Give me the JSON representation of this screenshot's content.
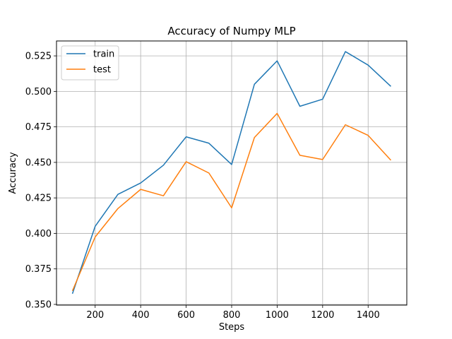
{
  "chart_data": {
    "type": "line",
    "title": "Accuracy of Numpy MLP",
    "xlabel": "Steps",
    "ylabel": "Accuracy",
    "x": [
      100,
      200,
      300,
      400,
      500,
      600,
      700,
      800,
      900,
      1000,
      1100,
      1200,
      1300,
      1400,
      1500
    ],
    "series": [
      {
        "name": "train",
        "color": "#1f77b4",
        "values": [
          0.3575,
          0.405,
          0.4275,
          0.4355,
          0.448,
          0.468,
          0.4635,
          0.4485,
          0.505,
          0.5215,
          0.4895,
          0.4945,
          0.528,
          0.5185,
          0.5035
        ]
      },
      {
        "name": "test",
        "color": "#ff7f0e",
        "values": [
          0.3595,
          0.3975,
          0.4175,
          0.431,
          0.4265,
          0.4505,
          0.4425,
          0.418,
          0.4675,
          0.4845,
          0.455,
          0.452,
          0.4765,
          0.469,
          0.4515
        ]
      }
    ],
    "xlim": [
      30,
      1570
    ],
    "ylim": [
      0.3495,
      0.5355
    ],
    "xticks": [
      200,
      400,
      600,
      800,
      1000,
      1200,
      1400
    ],
    "xtick_labels": [
      "200",
      "400",
      "600",
      "800",
      "1000",
      "1200",
      "1400"
    ],
    "yticks": [
      0.35,
      0.375,
      0.4,
      0.425,
      0.45,
      0.475,
      0.5,
      0.525
    ],
    "ytick_labels": [
      "0.350",
      "0.375",
      "0.400",
      "0.425",
      "0.450",
      "0.475",
      "0.500",
      "0.525"
    ],
    "grid": true,
    "legend_position": "upper-left"
  }
}
